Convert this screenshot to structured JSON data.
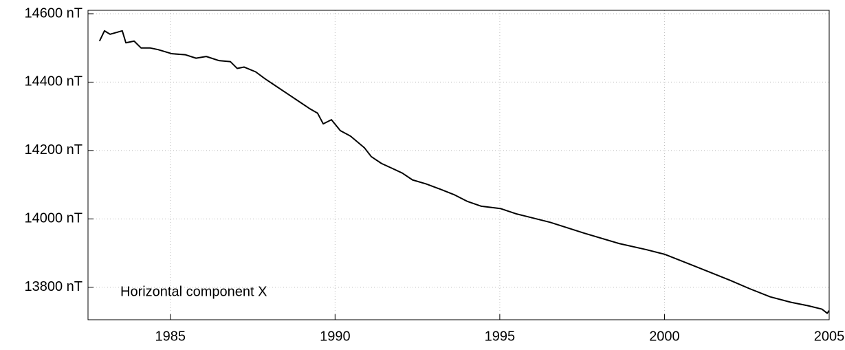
{
  "chart_data": {
    "type": "line",
    "annotation": "Horizontal component X",
    "x": [
      1982.85,
      1983.0,
      1983.17,
      1983.54,
      1983.65,
      1983.9,
      1984.11,
      1984.38,
      1984.63,
      1985.05,
      1985.46,
      1985.78,
      1986.09,
      1986.47,
      1986.82,
      1987.03,
      1987.24,
      1987.59,
      1987.87,
      1988.18,
      1988.6,
      1988.91,
      1989.22,
      1989.47,
      1989.64,
      1989.89,
      1990.16,
      1990.47,
      1990.89,
      1991.1,
      1991.41,
      1991.73,
      1992.04,
      1992.35,
      1992.77,
      1993.19,
      1993.61,
      1994.02,
      1994.44,
      1995.03,
      1995.49,
      1996.53,
      1997.57,
      1998.62,
      1999.45,
      2000.02,
      2000.7,
      2001.33,
      2002.0,
      2002.58,
      2003.21,
      2003.84,
      2004.36,
      2004.78,
      2004.94,
      2005.0
    ],
    "series": [
      {
        "name": "Horizontal component X",
        "color": "#000000",
        "values": [
          14520,
          14550,
          14540,
          14550,
          14515,
          14520,
          14500,
          14500,
          14495,
          14483,
          14480,
          14470,
          14475,
          14463,
          14460,
          14440,
          14444,
          14430,
          14410,
          14390,
          14363,
          14343,
          14323,
          14309,
          14278,
          14290,
          14258,
          14242,
          14208,
          14182,
          14162,
          14148,
          14134,
          14114,
          14102,
          14087,
          14071,
          14051,
          14037,
          14030,
          14015,
          13990,
          13958,
          13928,
          13910,
          13896,
          13870,
          13846,
          13820,
          13796,
          13772,
          13756,
          13746,
          13736,
          13724,
          13732
        ]
      }
    ],
    "xlim": [
      1982.5,
      2005
    ],
    "ylim": [
      13705,
      14610
    ],
    "xticks": [
      1985,
      1990,
      1995,
      2000,
      2005
    ],
    "yticks": [
      {
        "value": 13800,
        "label": "13800 nT"
      },
      {
        "value": 14000,
        "label": "14000 nT"
      },
      {
        "value": 14200,
        "label": "14200 nT"
      },
      {
        "value": 14400,
        "label": "14400 nT"
      },
      {
        "value": 14600,
        "label": "14600 nT"
      }
    ],
    "grid": true
  }
}
